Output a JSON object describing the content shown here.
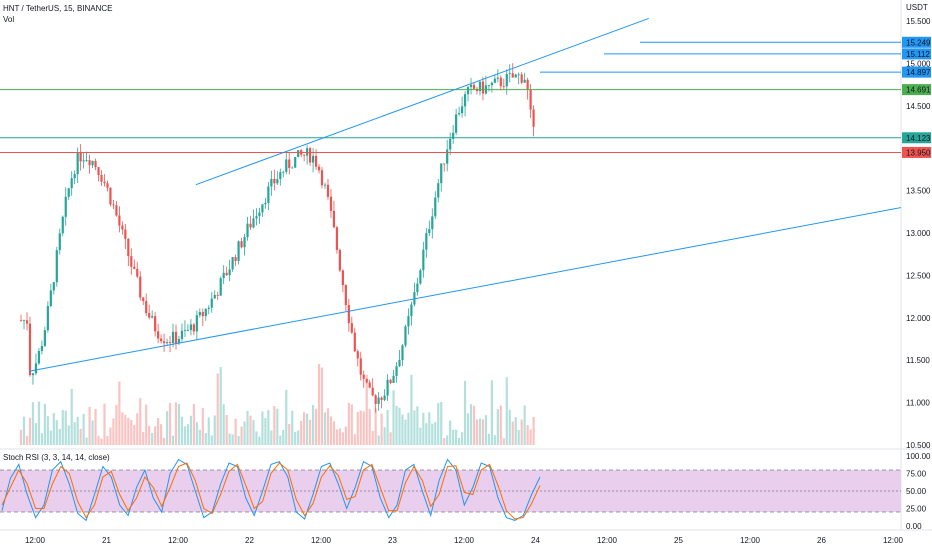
{
  "header": {
    "title": "HNT / TetherUS, 15, BINANCE",
    "vol_label": "Vol",
    "currency_label": "USDT"
  },
  "colors": {
    "up": "#26a69a",
    "down": "#ef5350",
    "trendline": "#2196f3",
    "level_green": "#4caf50",
    "level_orange": "#ff9800",
    "rsi_k": "#2196f3",
    "rsi_d": "#ff6d00",
    "rsi_band": "#e1bee7"
  },
  "chart_data": [
    {
      "type": "candlestick",
      "title": "HNT / TetherUS, 15, BINANCE",
      "ylim": [
        10.5,
        15.5
      ],
      "y_ticks": [
        "15.500",
        "15.000",
        "14.500",
        "13.500",
        "13.000",
        "12.500",
        "12.000",
        "11.500",
        "11.000",
        "10.500"
      ],
      "x_ticks": [
        "12:00",
        "21",
        "12:00",
        "22",
        "12:00",
        "23",
        "12:00",
        "24",
        "12:00",
        "25",
        "12:00",
        "26",
        "12:00"
      ],
      "price_labels": [
        {
          "value": 15.249,
          "label": "15.249",
          "color": "#2196f3"
        },
        {
          "value": 15.112,
          "label": "15.112",
          "color": "#2196f3"
        },
        {
          "value": 14.897,
          "label": "14.897",
          "color": "#2196f3"
        },
        {
          "value": 14.691,
          "label": "14.691",
          "color": "#4caf50"
        },
        {
          "value": 14.123,
          "label": "14.123",
          "color": "#26a69a"
        },
        {
          "value": 13.95,
          "label": "13.950",
          "color": "#ef5350"
        }
      ],
      "trend_lines": [
        {
          "from": [
            "Day 21 15:00",
            13.57
          ],
          "to": [
            "Day 24 19:00",
            15.53
          ]
        },
        {
          "from": [
            "Day 20 11:00",
            11.37
          ],
          "to": [
            "Day 26 23:00",
            13.3
          ]
        }
      ],
      "key_prices": [
        {
          "time": "Day 20 11:00",
          "price": 11.37
        },
        {
          "time": "Day 20 20:00",
          "price": 13.92
        },
        {
          "time": "Day 21 10:30",
          "price": 11.75
        },
        {
          "time": "Day 22 10:00",
          "price": 13.92
        },
        {
          "time": "Day 22 21:00",
          "price": 11.05
        },
        {
          "time": "Day 23 14:00",
          "price": 14.7
        },
        {
          "time": "Day 23 22:00",
          "price": 14.85
        },
        {
          "time": "Day 24 00:00",
          "price": 14.12
        }
      ]
    },
    {
      "type": "line",
      "title": "Stoch RSI (3, 3, 14, 14, close)",
      "ylim": [
        0,
        100
      ],
      "y_ticks": [
        "100.00",
        "75.00",
        "50.00",
        "25.00",
        "0.00"
      ],
      "band": [
        20,
        80
      ],
      "series": [
        {
          "name": "K",
          "values": [
            22,
            68,
            88,
            45,
            12,
            30,
            80,
            92,
            60,
            18,
            8,
            45,
            85,
            70,
            30,
            15,
            55,
            80,
            40,
            20,
            75,
            95,
            88,
            50,
            12,
            20,
            60,
            90,
            85,
            40,
            15,
            50,
            88,
            92,
            70,
            20,
            10,
            45,
            85,
            90,
            60,
            25,
            55,
            92,
            85,
            40,
            12,
            30,
            80,
            88,
            50,
            15,
            65,
            95,
            80,
            30,
            55,
            90,
            85,
            40,
            12,
            8,
            15,
            45,
            70
          ]
        },
        {
          "name": "D",
          "values": [
            30,
            55,
            80,
            60,
            25,
            25,
            60,
            85,
            75,
            35,
            12,
            30,
            70,
            78,
            45,
            22,
            40,
            70,
            55,
            28,
            55,
            85,
            90,
            65,
            25,
            18,
            45,
            78,
            88,
            58,
            25,
            35,
            75,
            90,
            80,
            38,
            15,
            32,
            70,
            86,
            72,
            38,
            42,
            80,
            88,
            55,
            22,
            22,
            62,
            85,
            65,
            28,
            45,
            85,
            86,
            48,
            45,
            80,
            88,
            58,
            22,
            10,
            12,
            32,
            58
          ]
        }
      ]
    }
  ]
}
